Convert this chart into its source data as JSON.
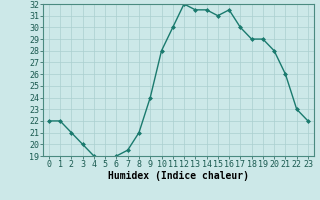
{
  "x": [
    0,
    1,
    2,
    3,
    4,
    5,
    6,
    7,
    8,
    9,
    10,
    11,
    12,
    13,
    14,
    15,
    16,
    17,
    18,
    19,
    20,
    21,
    22,
    23
  ],
  "y": [
    22,
    22,
    21,
    20,
    19,
    18.5,
    19,
    19.5,
    21,
    24,
    28,
    30,
    32,
    31.5,
    31.5,
    31,
    31.5,
    30,
    29,
    29,
    28,
    26,
    23,
    22
  ],
  "line_color": "#1a7a6e",
  "marker": "D",
  "marker_size": 2,
  "bg_color": "#cce8e8",
  "grid_color": "#aacfcf",
  "xlabel": "Humidex (Indice chaleur)",
  "ylim": [
    19,
    32
  ],
  "xlim": [
    -0.5,
    23.5
  ],
  "yticks": [
    19,
    20,
    21,
    22,
    23,
    24,
    25,
    26,
    27,
    28,
    29,
    30,
    31,
    32
  ],
  "xticks": [
    0,
    1,
    2,
    3,
    4,
    5,
    6,
    7,
    8,
    9,
    10,
    11,
    12,
    13,
    14,
    15,
    16,
    17,
    18,
    19,
    20,
    21,
    22,
    23
  ],
  "xlabel_fontsize": 7,
  "tick_fontsize": 6,
  "line_width": 1.0
}
